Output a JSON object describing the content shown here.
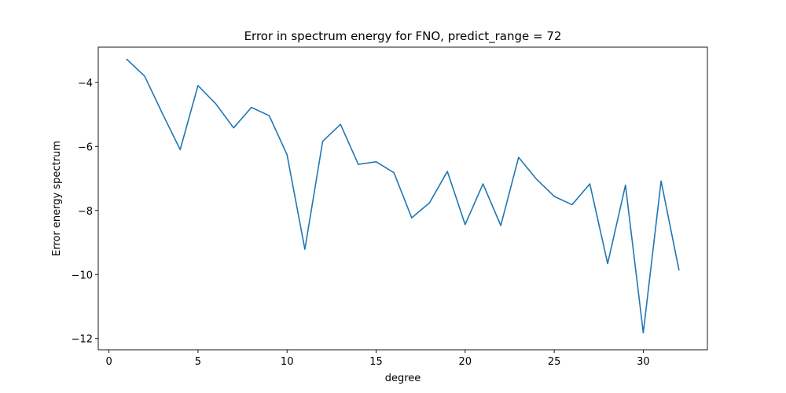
{
  "chart_data": {
    "type": "line",
    "title": "Error in spectrum energy for FNO, predict_range = 72",
    "xlabel": "degree",
    "ylabel": "Error energy spectrum",
    "xlim": [
      -0.6,
      33.6
    ],
    "ylim": [
      -12.35,
      -2.9
    ],
    "xticks": [
      0,
      5,
      10,
      15,
      20,
      25,
      30
    ],
    "yticks": [
      -12,
      -10,
      -8,
      -6,
      -4
    ],
    "grid": false,
    "series": [
      {
        "color": "#1f77b4",
        "x": [
          1,
          2,
          3,
          4,
          5,
          6,
          7,
          8,
          9,
          10,
          11,
          12,
          13,
          14,
          15,
          16,
          17,
          18,
          19,
          20,
          21,
          22,
          23,
          24,
          25,
          26,
          27,
          28,
          29,
          30,
          31,
          32
        ],
        "y": [
          -3.28,
          -3.8,
          -4.97,
          -6.1,
          -4.1,
          -4.67,
          -5.42,
          -4.78,
          -5.04,
          -6.26,
          -9.21,
          -5.84,
          -5.31,
          -6.56,
          -6.48,
          -6.82,
          -8.23,
          -7.76,
          -6.78,
          -8.44,
          -7.17,
          -8.47,
          -6.34,
          -7.02,
          -7.56,
          -7.82,
          -7.17,
          -9.66,
          -7.21,
          -11.82,
          -7.08,
          -9.85
        ]
      }
    ]
  }
}
